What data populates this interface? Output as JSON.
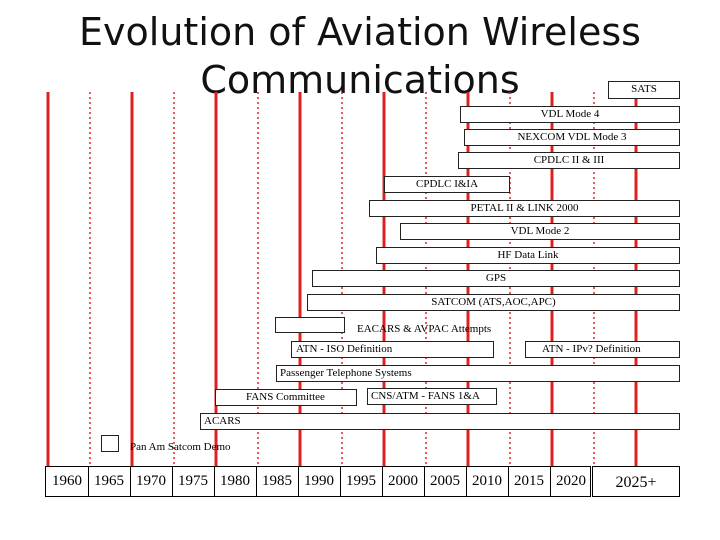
{
  "title": "Evolution of Aviation Wireless Communications",
  "colors": {
    "guide_red": "#e02020"
  },
  "bars": {
    "sats": "SATS",
    "vdl_mode_4": "VDL Mode 4",
    "nexcom": "NEXCOM VDL Mode 3",
    "cpdlc_2_3": "CPDLC II & III",
    "cpdlc_1_1a": "CPDLC I&IA",
    "petal": "PETAL II & LINK 2000",
    "vdl_mode_2": "VDL Mode 2",
    "hf_data_link": "HF Data Link",
    "gps": "GPS",
    "satcom": "SATCOM (ATS,AOC,APC)",
    "eacars": "EACARS & AVPAC Attempts",
    "atn_iso": "ATN - ISO Definition",
    "atn_ipv": "ATN - IPv? Definition",
    "passenger": "Passenger Telephone Systems",
    "fans_committee": "FANS Committee",
    "cns_atm": "CNS/ATM - FANS 1&A",
    "acars": "ACARS",
    "panam": "Pan Am Satcom Demo"
  },
  "timeline": {
    "years": [
      "1960",
      "1965",
      "1970",
      "1975",
      "1980",
      "1985",
      "1990",
      "1995",
      "2000",
      "2005",
      "2010",
      "2015",
      "2020"
    ],
    "future": "2025+"
  }
}
